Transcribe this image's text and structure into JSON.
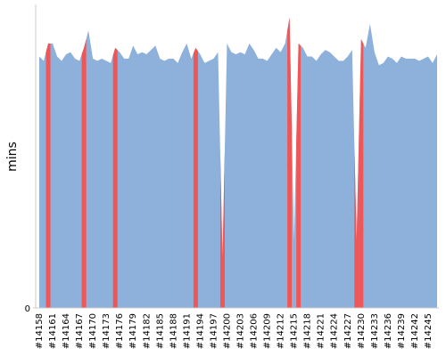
{
  "chart_data": {
    "type": "area",
    "y_label": "mins",
    "categories": [
      "#14158",
      null,
      null,
      "#14161",
      null,
      null,
      "#14164",
      null,
      null,
      "#14167",
      null,
      null,
      "#14170",
      null,
      null,
      "#14173",
      null,
      null,
      "#14176",
      null,
      null,
      "#14179",
      null,
      null,
      "#14182",
      null,
      null,
      "#14185",
      null,
      null,
      "#14188",
      null,
      null,
      "#14191",
      null,
      null,
      "#14194",
      null,
      null,
      "#14197",
      null,
      null,
      "#14200",
      null,
      null,
      "#14203",
      null,
      null,
      "#14206",
      null,
      null,
      "#14209",
      null,
      null,
      "#14212",
      null,
      null,
      "#14215",
      null,
      null,
      "#14218",
      null,
      null,
      "#14221",
      null,
      null,
      "#14224",
      null,
      null,
      "#14227",
      null,
      null,
      "#14230",
      null,
      null,
      "#14233",
      null,
      null,
      "#14236",
      null,
      null,
      "#14239",
      null,
      null,
      "#14242",
      null,
      null,
      "#14245",
      null,
      null
    ],
    "values": [
      58,
      57,
      61,
      61,
      58,
      57,
      58.5,
      59,
      57.5,
      57,
      60,
      64,
      57.5,
      57,
      57.5,
      57,
      56.5,
      60,
      59,
      57.5,
      57.5,
      60.5,
      58.5,
      59,
      58.5,
      59.5,
      60.5,
      57.5,
      57,
      57.5,
      57.5,
      56.5,
      59,
      61,
      57.5,
      60,
      58.5,
      56.5,
      57,
      57.5,
      59,
      11.5,
      61,
      59,
      58.5,
      59,
      58.5,
      61,
      59.5,
      57.5,
      57.5,
      57,
      58.5,
      60,
      59,
      61,
      67,
      15.6,
      61,
      60,
      58,
      58,
      57,
      58.5,
      59.5,
      59,
      58,
      57,
      57,
      58,
      59.5,
      15.6,
      62,
      60,
      65.5,
      59,
      56,
      56.5,
      58,
      57.5,
      56.5,
      58,
      57.5,
      57.5,
      57.5,
      57,
      57.5,
      58,
      56.5,
      58.5
    ],
    "color": "#8eb1db",
    "point_colors": [
      "#8eb1db",
      "#8eb1db",
      "#f05656",
      "#8eb1db",
      "#8eb1db",
      "#8eb1db",
      "#8eb1db",
      "#8eb1db",
      "#8eb1db",
      "#8eb1db",
      "#f05656",
      "#8eb1db",
      "#8eb1db",
      "#8eb1db",
      "#8eb1db",
      "#8eb1db",
      "#8eb1db",
      "#f05656",
      "#8eb1db",
      "#8eb1db",
      "#8eb1db",
      "#8eb1db",
      "#8eb1db",
      "#8eb1db",
      "#8eb1db",
      "#8eb1db",
      "#8eb1db",
      "#8eb1db",
      "#8eb1db",
      "#8eb1db",
      "#8eb1db",
      "#8eb1db",
      "#8eb1db",
      "#8eb1db",
      "#8eb1db",
      "#f05656",
      "#8eb1db",
      "#8eb1db",
      "#8eb1db",
      "#8eb1db",
      "#8eb1db",
      "#f05656",
      "#8eb1db",
      "#8eb1db",
      "#8eb1db",
      "#8eb1db",
      "#8eb1db",
      "#8eb1db",
      "#8eb1db",
      "#8eb1db",
      "#8eb1db",
      "#8eb1db",
      "#8eb1db",
      "#8eb1db",
      "#8eb1db",
      "#8eb1db",
      "#f05656",
      "#8eb1db",
      "#f05656",
      "#8eb1db",
      "#8eb1db",
      "#8eb1db",
      "#8eb1db",
      "#8eb1db",
      "#8eb1db",
      "#8eb1db",
      "#8eb1db",
      "#8eb1db",
      "#8eb1db",
      "#8eb1db",
      "#8eb1db",
      "#f05656",
      "#f05656",
      "#8eb1db",
      "#8eb1db",
      "#8eb1db",
      "#8eb1db",
      "#8eb1db",
      "#8eb1db",
      "#8eb1db",
      "#8eb1db",
      "#8eb1db",
      "#8eb1db",
      "#8eb1db",
      "#8eb1db",
      "#8eb1db",
      "#8eb1db",
      "#8eb1db",
      "#8eb1db",
      "#8eb1db"
    ],
    "ylim": [
      0,
      70
    ],
    "yticks": [
      0
    ]
  }
}
